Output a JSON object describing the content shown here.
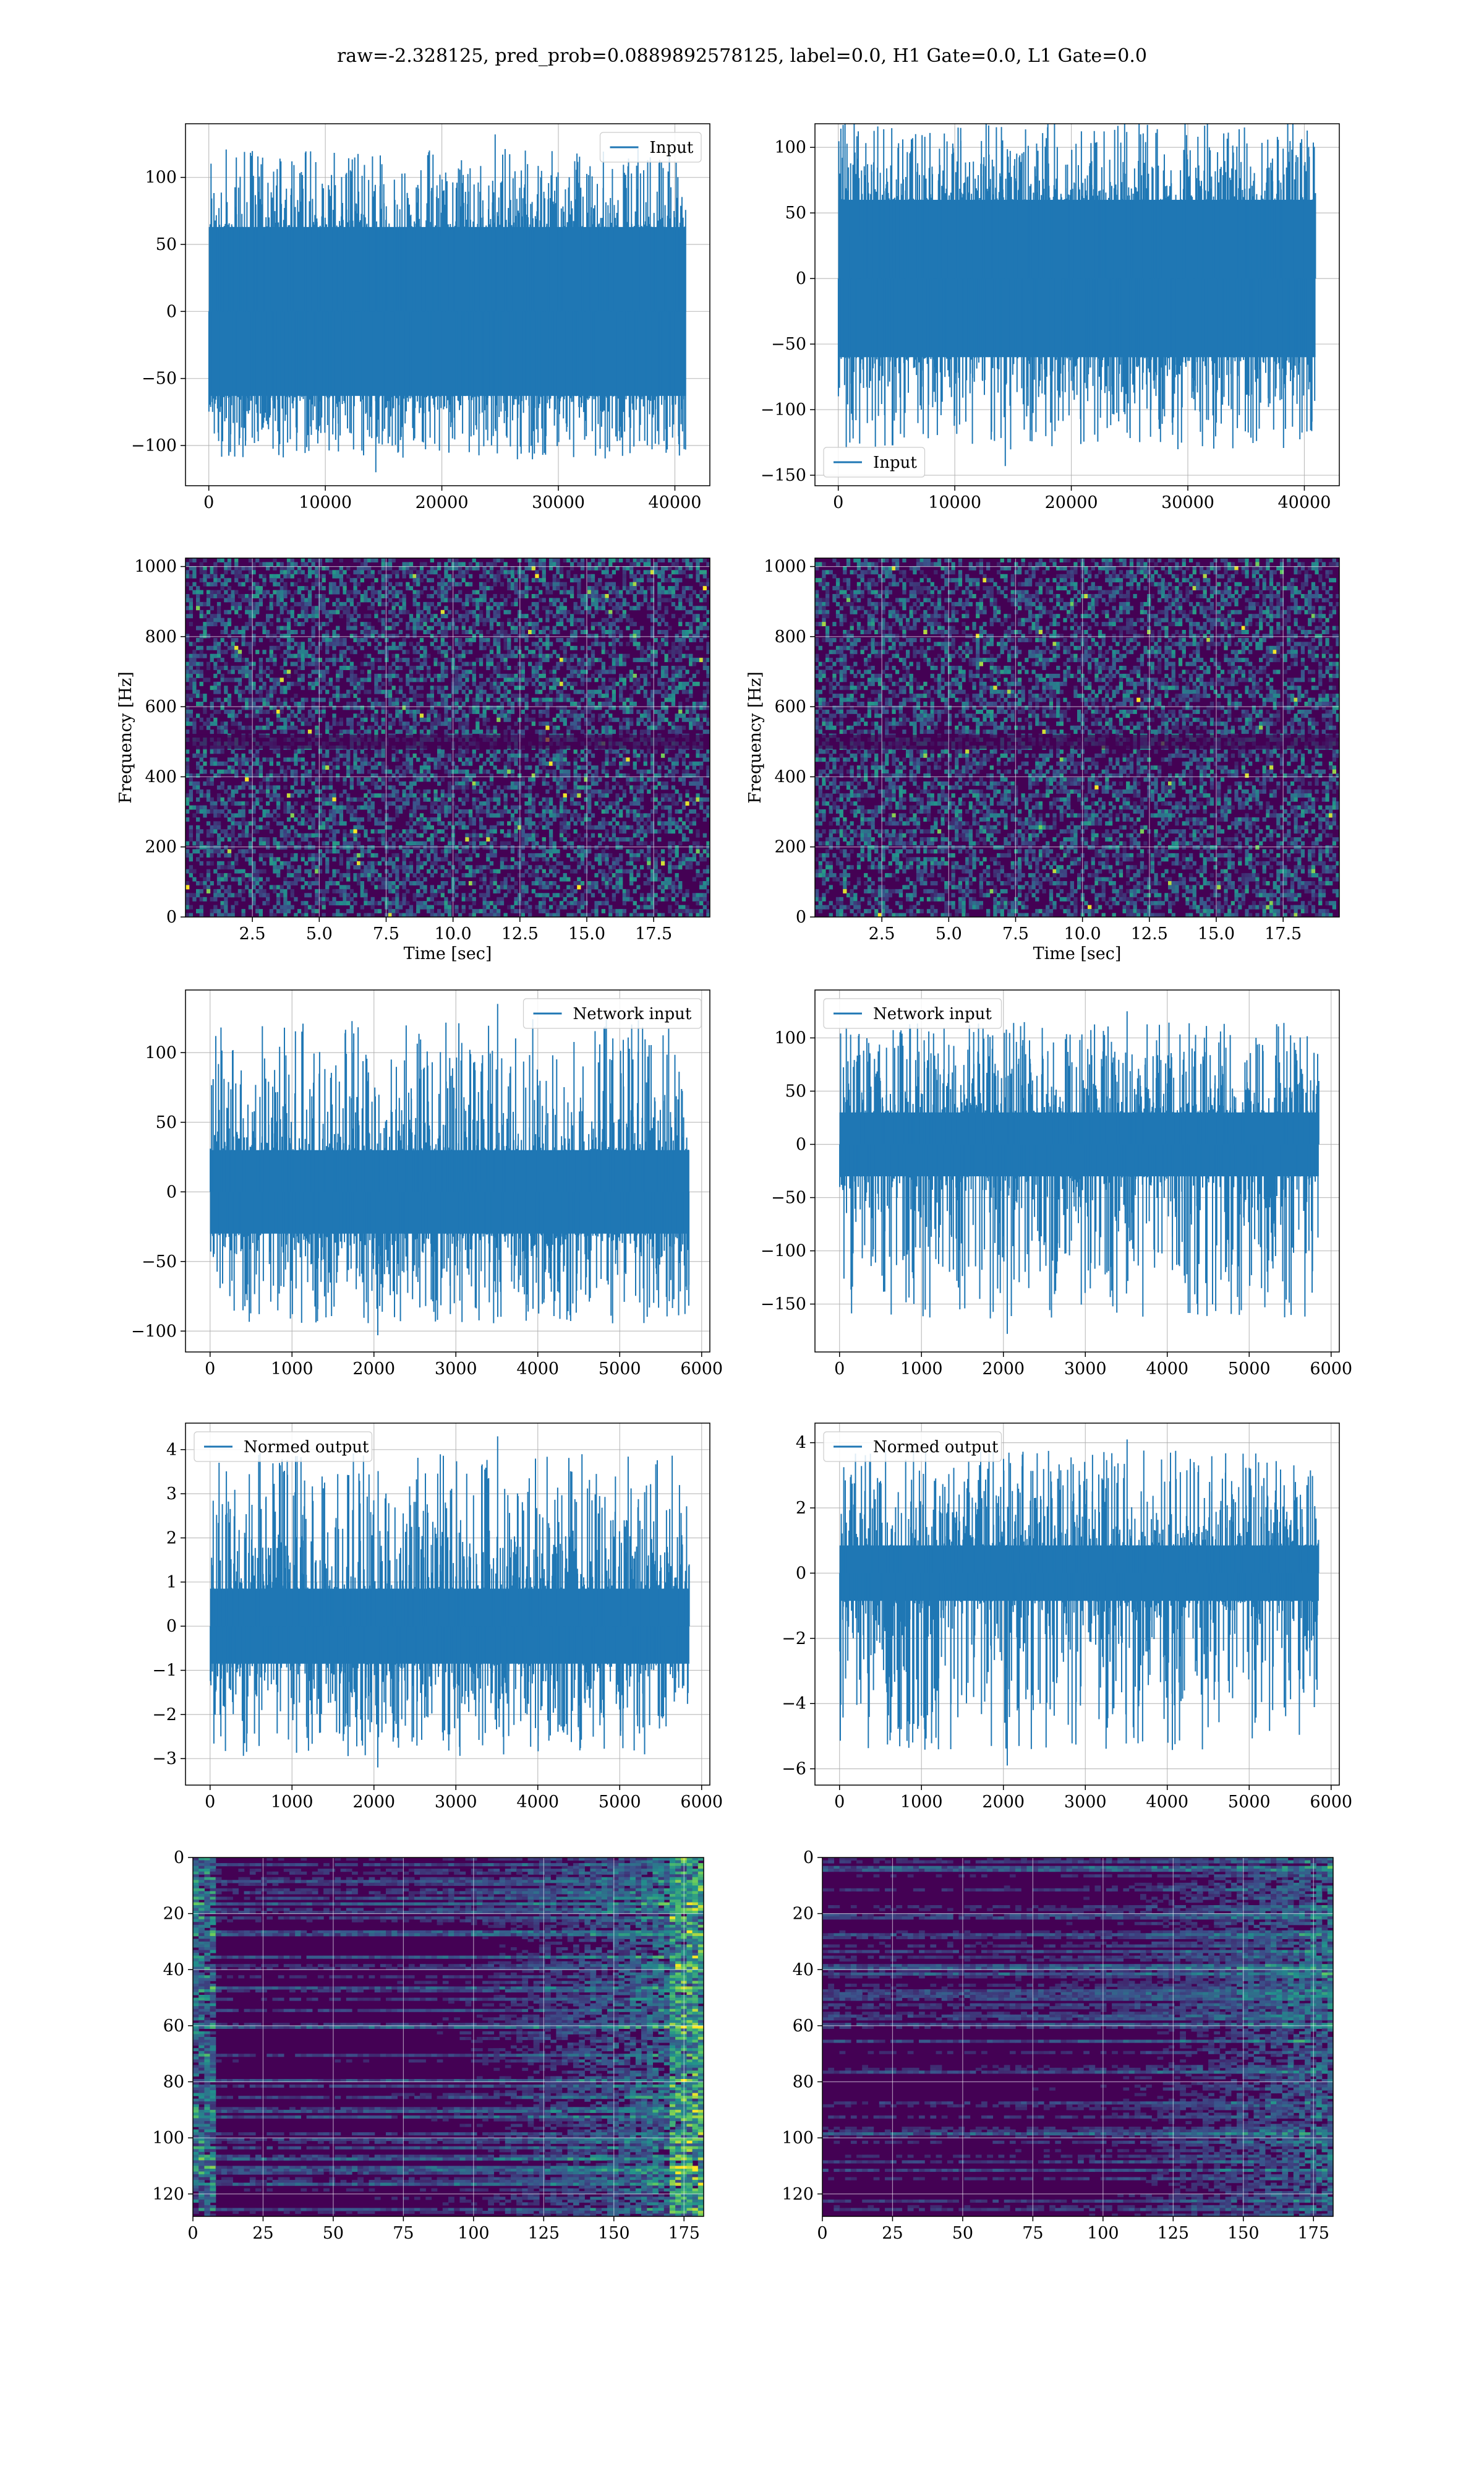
{
  "title": "raw=-2.328125, pred_prob=0.0889892578125, label=0.0, H1 Gate=0.0, L1 Gate=0.0",
  "colors": {
    "line": "#1f77b4",
    "viridis_low": "#440154",
    "viridis_mid": "#21908d",
    "viridis_high": "#fde725"
  },
  "chart_data": [
    {
      "id": "r1c1",
      "type": "line",
      "series": [
        {
          "name": "Input"
        }
      ],
      "legend": "upper right",
      "xlim": [
        -2000,
        43000
      ],
      "ylim": [
        -130,
        140
      ],
      "xticks": [
        0,
        10000,
        20000,
        30000,
        40000
      ],
      "yticks": [
        -100,
        -50,
        0,
        50,
        100
      ],
      "x_range": [
        0,
        40960
      ],
      "core": 63,
      "spike_min": -120,
      "spike_max": 132,
      "grid": true
    },
    {
      "id": "r1c2",
      "type": "line",
      "series": [
        {
          "name": "Input"
        }
      ],
      "legend": "lower left",
      "xlim": [
        -2000,
        43000
      ],
      "ylim": [
        -158,
        118
      ],
      "xticks": [
        0,
        10000,
        20000,
        30000,
        40000
      ],
      "yticks": [
        -150,
        -100,
        -50,
        0,
        50,
        100
      ],
      "x_range": [
        0,
        40960
      ],
      "core": 60,
      "spike_min": -143,
      "spike_max": 130,
      "grid": true
    },
    {
      "id": "r2c1",
      "type": "heatmap",
      "xlabel": "Time [sec]",
      "ylabel": "Frequency [Hz]",
      "xlim": [
        0,
        19.6
      ],
      "ylim": [
        0,
        1024
      ],
      "xticks": [
        2.5,
        5.0,
        7.5,
        10.0,
        12.5,
        15.0,
        17.5
      ],
      "xtick_labels": [
        "2.5",
        "5.0",
        "7.5",
        "10.0",
        "12.5",
        "15.0",
        "17.5"
      ],
      "yticks": [
        0,
        200,
        400,
        600,
        800,
        1000
      ],
      "grid": true
    },
    {
      "id": "r2c2",
      "type": "heatmap",
      "xlabel": "Time [sec]",
      "ylabel": "Frequency [Hz]",
      "xlim": [
        0,
        19.6
      ],
      "ylim": [
        0,
        1024
      ],
      "xticks": [
        2.5,
        5.0,
        7.5,
        10.0,
        12.5,
        15.0,
        17.5
      ],
      "xtick_labels": [
        "2.5",
        "5.0",
        "7.5",
        "10.0",
        "12.5",
        "15.0",
        "17.5"
      ],
      "yticks": [
        0,
        200,
        400,
        600,
        800,
        1000
      ],
      "grid": true
    },
    {
      "id": "r3c1",
      "type": "line",
      "series": [
        {
          "name": "Network input"
        }
      ],
      "legend": "upper right",
      "xlim": [
        -300,
        6100
      ],
      "ylim": [
        -115,
        145
      ],
      "xticks": [
        0,
        1000,
        2000,
        3000,
        4000,
        5000,
        6000
      ],
      "yticks": [
        -100,
        -50,
        0,
        50,
        100
      ],
      "x_range": [
        0,
        5850
      ],
      "core": 30,
      "spike_min": -103,
      "spike_max": 135,
      "grid": true
    },
    {
      "id": "r3c2",
      "type": "line",
      "series": [
        {
          "name": "Network input"
        }
      ],
      "legend": "upper left",
      "xlim": [
        -300,
        6100
      ],
      "ylim": [
        -195,
        145
      ],
      "xticks": [
        0,
        1000,
        2000,
        3000,
        4000,
        5000,
        6000
      ],
      "yticks": [
        -150,
        -100,
        -50,
        0,
        50,
        100
      ],
      "x_range": [
        0,
        5850
      ],
      "core": 30,
      "spike_min": -178,
      "spike_max": 125,
      "grid": true
    },
    {
      "id": "r4c1",
      "type": "line",
      "series": [
        {
          "name": "Normed output"
        }
      ],
      "legend": "upper left",
      "xlim": [
        -300,
        6100
      ],
      "ylim": [
        -3.6,
        4.6
      ],
      "xticks": [
        0,
        1000,
        2000,
        3000,
        4000,
        5000,
        6000
      ],
      "yticks": [
        -3,
        -2,
        -1,
        0,
        1,
        2,
        3,
        4
      ],
      "x_range": [
        0,
        5850
      ],
      "core": 0.85,
      "spike_min": -3.2,
      "spike_max": 4.3,
      "grid": true
    },
    {
      "id": "r4c2",
      "type": "line",
      "series": [
        {
          "name": "Normed output"
        }
      ],
      "legend": "upper left",
      "xlim": [
        -300,
        6100
      ],
      "ylim": [
        -6.5,
        4.6
      ],
      "xticks": [
        0,
        1000,
        2000,
        3000,
        4000,
        5000,
        6000
      ],
      "yticks": [
        -6,
        -4,
        -2,
        0,
        2,
        4
      ],
      "x_range": [
        0,
        5850
      ],
      "core": 0.85,
      "spike_min": -5.9,
      "spike_max": 4.1,
      "grid": true
    },
    {
      "id": "r5c1",
      "type": "heatmap",
      "xlim": [
        0,
        182
      ],
      "ylim": [
        0,
        128
      ],
      "y_inverted": true,
      "xticks": [
        0,
        25,
        50,
        75,
        100,
        125,
        150,
        175
      ],
      "yticks": [
        0,
        20,
        40,
        60,
        80,
        100,
        120
      ],
      "grid": true
    },
    {
      "id": "r5c2",
      "type": "heatmap",
      "xlim": [
        0,
        182
      ],
      "ylim": [
        0,
        128
      ],
      "y_inverted": true,
      "xticks": [
        0,
        25,
        50,
        75,
        100,
        125,
        150,
        175
      ],
      "yticks": [
        0,
        20,
        40,
        60,
        80,
        100,
        120
      ],
      "grid": true
    }
  ]
}
